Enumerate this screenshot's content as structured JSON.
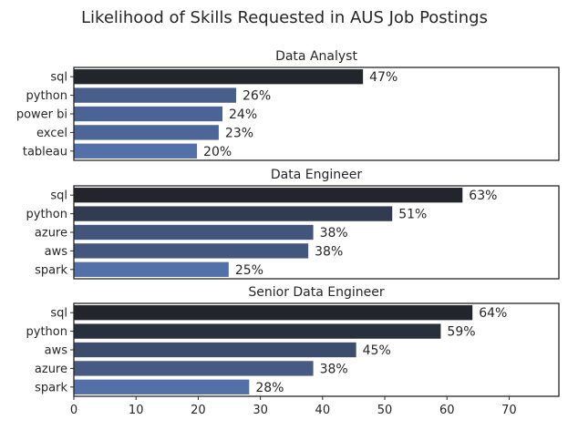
{
  "chart_data": {
    "type": "bar",
    "orientation": "horizontal",
    "title": "Likelihood of Skills Requested in AUS Job Postings",
    "xlim": [
      0,
      78
    ],
    "x_ticks": [
      "0",
      "10",
      "20",
      "30",
      "40",
      "50",
      "60",
      "70"
    ],
    "value_suffix": "%",
    "grid": false,
    "panels": [
      {
        "title": "Data Analyst",
        "categories": [
          "sql",
          "python",
          "power bi",
          "excel",
          "tableau"
        ],
        "values": [
          46.5,
          26.1,
          23.9,
          23.3,
          19.8
        ],
        "labels": [
          "47%",
          "26%",
          "24%",
          "23%",
          "20%"
        ]
      },
      {
        "title": "Data Engineer",
        "categories": [
          "sql",
          "python",
          "azure",
          "aws",
          "spark"
        ],
        "values": [
          62.5,
          51.2,
          38.5,
          37.7,
          24.9
        ],
        "labels": [
          "63%",
          "51%",
          "38%",
          "38%",
          "25%"
        ]
      },
      {
        "title": "Senior Data Engineer",
        "categories": [
          "sql",
          "python",
          "aws",
          "azure",
          "spark"
        ],
        "values": [
          64.1,
          59.0,
          45.4,
          38.5,
          28.2
        ],
        "labels": [
          "64%",
          "59%",
          "45%",
          "38%",
          "28%"
        ]
      }
    ],
    "colors": {
      "dark_end": "#22252b",
      "light_end": "#5470a8",
      "text": "#262626"
    }
  }
}
